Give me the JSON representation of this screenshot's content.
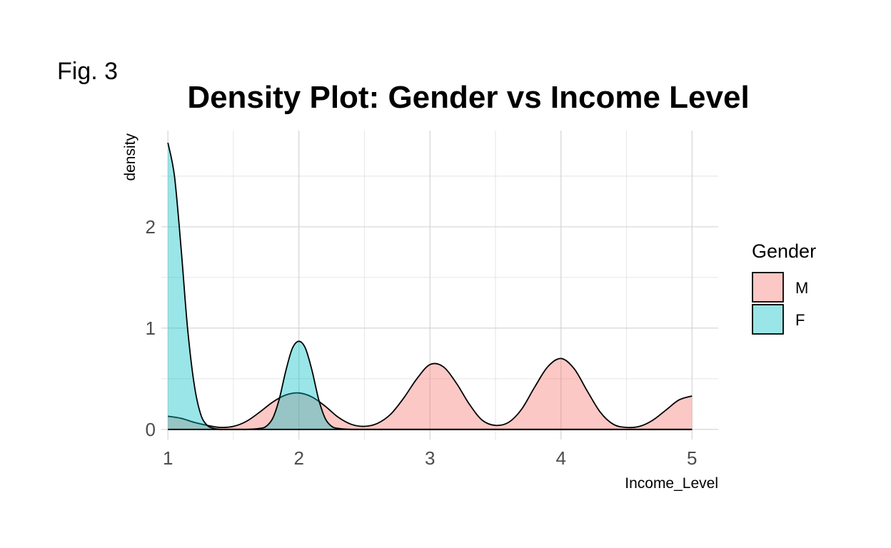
{
  "figure_label": "Fig. 3",
  "chart_data": {
    "type": "area",
    "subtype": "density",
    "title": "Density Plot: Gender vs Income Level",
    "xlabel": "Income_Level",
    "ylabel": "density",
    "xlim": [
      0.95,
      5.2
    ],
    "ylim": [
      -0.1,
      2.95
    ],
    "x_ticks": [
      1,
      2,
      3,
      4,
      5
    ],
    "x_tick_labels": [
      "1",
      "2",
      "3",
      "4",
      "5"
    ],
    "y_ticks": [
      0,
      1,
      2
    ],
    "y_tick_labels": [
      "0",
      "1",
      "2"
    ],
    "grid": true,
    "legend": {
      "title": "Gender",
      "position": "right"
    },
    "series": [
      {
        "name": "M",
        "color": "#F8766D",
        "x": [
          1.0,
          1.1,
          1.2,
          1.3,
          1.4,
          1.5,
          1.6,
          1.7,
          1.8,
          1.9,
          2.0,
          2.1,
          2.2,
          2.3,
          2.4,
          2.5,
          2.6,
          2.7,
          2.8,
          2.9,
          3.0,
          3.1,
          3.2,
          3.3,
          3.4,
          3.5,
          3.6,
          3.7,
          3.8,
          3.9,
          4.0,
          4.1,
          4.2,
          4.3,
          4.4,
          4.5,
          4.6,
          4.7,
          4.8,
          4.9,
          5.0
        ],
        "y": [
          0.13,
          0.11,
          0.07,
          0.04,
          0.02,
          0.03,
          0.08,
          0.17,
          0.27,
          0.34,
          0.36,
          0.32,
          0.23,
          0.12,
          0.05,
          0.03,
          0.06,
          0.15,
          0.31,
          0.5,
          0.64,
          0.62,
          0.46,
          0.25,
          0.09,
          0.04,
          0.07,
          0.2,
          0.42,
          0.62,
          0.7,
          0.6,
          0.38,
          0.17,
          0.05,
          0.02,
          0.03,
          0.09,
          0.19,
          0.29,
          0.33
        ]
      },
      {
        "name": "F",
        "color": "#00BFC4",
        "x": [
          1.0,
          1.05,
          1.1,
          1.15,
          1.2,
          1.25,
          1.3,
          1.35,
          1.4,
          1.5,
          1.6,
          1.7,
          1.75,
          1.8,
          1.85,
          1.9,
          1.95,
          2.0,
          2.05,
          2.1,
          2.15,
          2.2,
          2.25,
          2.3,
          2.4,
          2.5,
          2.6,
          2.8,
          3.0,
          3.5,
          4.0,
          4.5,
          5.0
        ],
        "y": [
          2.83,
          2.5,
          1.8,
          1.0,
          0.45,
          0.15,
          0.04,
          0.01,
          0.0,
          0.0,
          0.0,
          0.01,
          0.03,
          0.11,
          0.3,
          0.58,
          0.8,
          0.87,
          0.8,
          0.58,
          0.3,
          0.11,
          0.03,
          0.01,
          0.0,
          0.0,
          0.0,
          0.0,
          0.0,
          0.0,
          0.0,
          0.0,
          0.0
        ]
      }
    ]
  }
}
